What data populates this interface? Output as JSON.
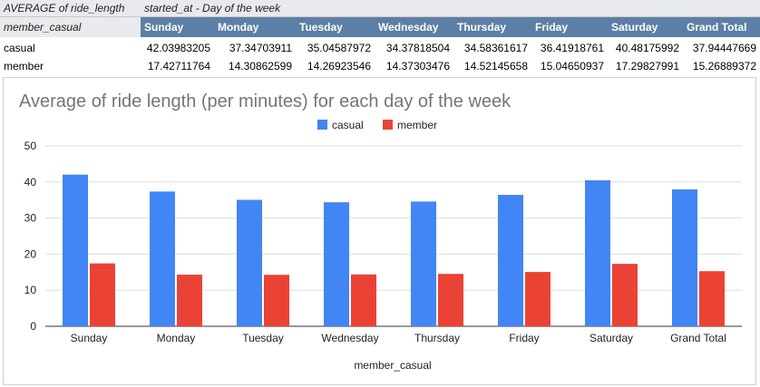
{
  "pivot": {
    "title_left": "AVERAGE of ride_length",
    "title_right": "started_at - Day of the week",
    "row_header": "member_casual",
    "columns": [
      "Sunday",
      "Monday",
      "Tuesday",
      "Wednesday",
      "Thursday",
      "Friday",
      "Saturday",
      "Grand Total"
    ],
    "rows": [
      {
        "label": "casual",
        "values": [
          "42.03983205",
          "37.34703911",
          "35.04587972",
          "34.37818504",
          "34.58361617",
          "36.41918761",
          "40.48175992",
          "37.94447669"
        ]
      },
      {
        "label": "member",
        "values": [
          "17.42711764",
          "14.30862599",
          "14.26923546",
          "14.37303476",
          "14.52145658",
          "15.04650937",
          "17.29827991",
          "15.26889372"
        ]
      }
    ],
    "header_color": "#5b7fa6"
  },
  "chart_data": {
    "type": "bar",
    "title": "Average of ride length (per minutes) for each day of the week",
    "xlabel": "member_casual",
    "ylabel": "",
    "categories": [
      "Sunday",
      "Monday",
      "Tuesday",
      "Wednesday",
      "Thursday",
      "Friday",
      "Saturday",
      "Grand Total"
    ],
    "series": [
      {
        "name": "casual",
        "color": "#4285f4",
        "values": [
          42.04,
          37.35,
          35.05,
          34.38,
          34.58,
          36.42,
          40.48,
          37.94
        ]
      },
      {
        "name": "member",
        "color": "#ea4335",
        "values": [
          17.43,
          14.31,
          14.27,
          14.37,
          14.52,
          15.05,
          17.3,
          15.27
        ]
      }
    ],
    "ylim": [
      0,
      50
    ],
    "yticks": [
      0,
      10,
      20,
      30,
      40,
      50
    ],
    "grid": true,
    "legend": "top-center"
  }
}
